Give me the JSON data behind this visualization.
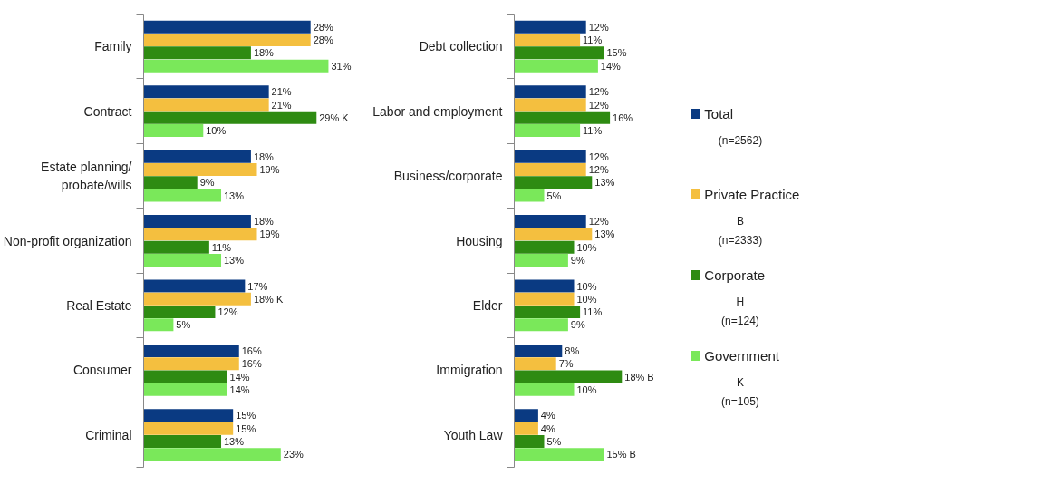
{
  "chart_data": [
    {
      "type": "bar",
      "orientation": "horizontal",
      "categories": [
        "Family",
        "Contract",
        "Estate planning/ probate/wills",
        "Non-profit organization",
        "Real Estate",
        "Consumer",
        "Criminal"
      ],
      "series": [
        {
          "color": "#0a3a82",
          "values": [
            28,
            21,
            18,
            18,
            17,
            16,
            15
          ],
          "value_labels": [
            "28%",
            "21%",
            "18%",
            "18%",
            "17%",
            "16%",
            "15%"
          ]
        },
        {
          "color": "#f4bf3f",
          "values": [
            28,
            21,
            19,
            19,
            18,
            16,
            15
          ],
          "value_labels": [
            "28%",
            "21%",
            "19%",
            "19%",
            "18% K",
            "16%",
            "15%"
          ]
        },
        {
          "color": "#2e8b12",
          "values": [
            18,
            29,
            9,
            11,
            12,
            14,
            13
          ],
          "value_labels": [
            "18%",
            "29% K",
            "9%",
            "11%",
            "12%",
            "14%",
            "13%"
          ]
        },
        {
          "color": "#7ae85a",
          "values": [
            31,
            10,
            13,
            13,
            5,
            14,
            23
          ],
          "value_labels": [
            "31%",
            "10%",
            "13%",
            "13%",
            "5%",
            "14%",
            "23%"
          ]
        }
      ]
    },
    {
      "type": "bar",
      "orientation": "horizontal",
      "categories": [
        "Debt collection",
        "Labor and employment",
        "Business/corporate",
        "Housing",
        "Elder",
        "Immigration",
        "Youth Law"
      ],
      "series": [
        {
          "name": "Total",
          "color": "#0a3a82",
          "values": [
            12,
            12,
            12,
            12,
            10,
            8,
            4
          ],
          "value_labels": [
            "12%",
            "12%",
            "12%",
            "12%",
            "10%",
            "8%",
            "4%"
          ]
        },
        {
          "name": "Private Practice",
          "color": "#f4bf3f",
          "values": [
            11,
            12,
            12,
            13,
            10,
            7,
            4
          ],
          "value_labels": [
            "11%",
            "12%",
            "12%",
            "13%",
            "10%",
            "7%",
            "4%"
          ]
        },
        {
          "name": "Corporate",
          "color": "#2e8b12",
          "values": [
            15,
            16,
            13,
            10,
            11,
            18,
            5
          ],
          "value_labels": [
            "15%",
            "16%",
            "13%",
            "10%",
            "11%",
            "18% B",
            "5%"
          ]
        },
        {
          "name": "Government",
          "color": "#7ae85a",
          "values": [
            14,
            11,
            5,
            9,
            9,
            10,
            15
          ],
          "value_labels": [
            "14%",
            "11%",
            "5%",
            "9%",
            "9%",
            "10%",
            "15% B"
          ]
        }
      ],
      "legend": "right",
      "annotations": [
        "(n=2562)",
        "B\n(n=2333)",
        "H\n(n=124)",
        "K\n(n=105)"
      ]
    }
  ]
}
